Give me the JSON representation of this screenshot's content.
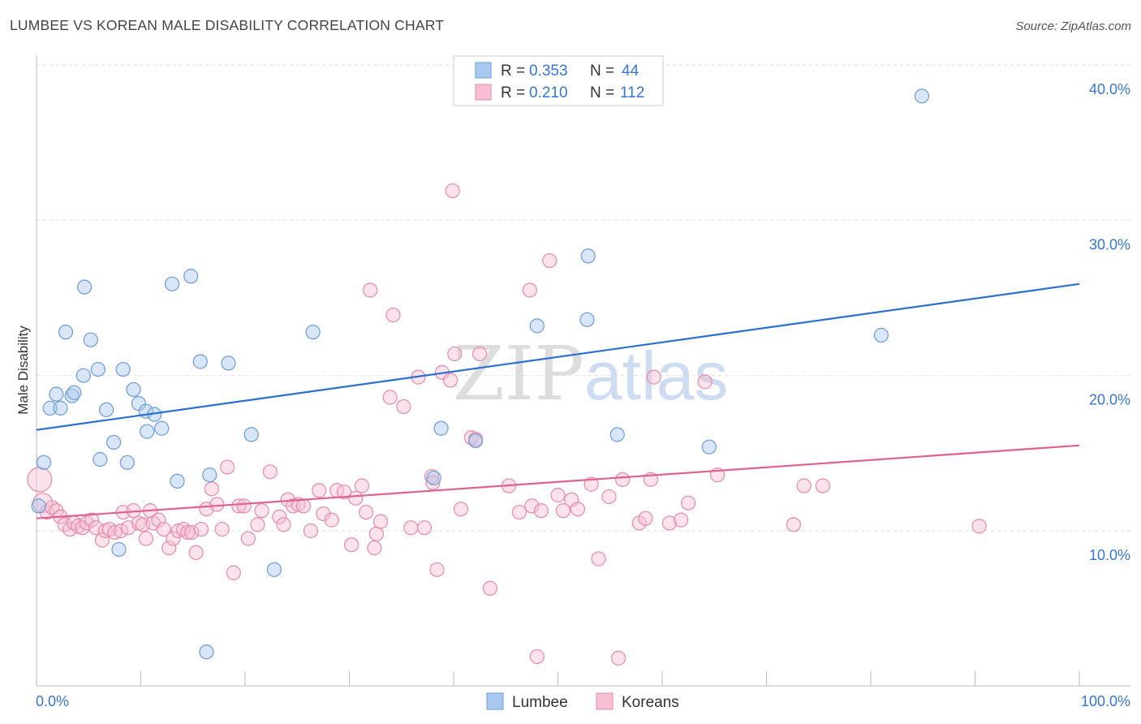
{
  "title": "LUMBEE VS KOREAN MALE DISABILITY CORRELATION CHART",
  "source": "Source: ZipAtlas.com",
  "watermark": {
    "part1": "ZIP",
    "part2": "atlas"
  },
  "chart_data": {
    "type": "scatter",
    "ylabel": "Male Disability",
    "xlabel": "",
    "xlim": [
      0,
      100
    ],
    "ylim": [
      0,
      40
    ],
    "x_tick_labels": [
      "0.0%",
      "100.0%"
    ],
    "y_ticks": [
      10,
      20,
      30,
      40
    ],
    "y_tick_labels": [
      "10.0%",
      "20.0%",
      "30.0%",
      "40.0%"
    ],
    "grid": true,
    "legend_position": "top-center",
    "stats": [
      {
        "r_label": "R =",
        "r_value": "0.353",
        "n_label": "N =",
        "n_value": "44"
      },
      {
        "r_label": "R =",
        "r_value": "0.210",
        "n_label": "N =",
        "n_value": "112"
      }
    ],
    "series": [
      {
        "name": "Lumbee",
        "color": "#a9c8ee",
        "stroke": "#6a9bd8",
        "line_color": "#2b6fd0",
        "trend": [
          [
            0,
            16.5
          ],
          [
            100,
            25.9
          ]
        ],
        "points": [
          [
            0.2,
            11.6
          ],
          [
            0.7,
            14.4
          ],
          [
            1.3,
            17.9
          ],
          [
            1.9,
            18.8
          ],
          [
            2.3,
            17.9
          ],
          [
            2.8,
            22.8
          ],
          [
            3.4,
            18.7
          ],
          [
            3.6,
            18.9
          ],
          [
            4.5,
            20.0
          ],
          [
            4.6,
            25.7
          ],
          [
            5.2,
            22.3
          ],
          [
            5.9,
            20.4
          ],
          [
            6.1,
            14.6
          ],
          [
            6.7,
            17.8
          ],
          [
            7.4,
            15.7
          ],
          [
            7.9,
            8.8
          ],
          [
            8.3,
            20.4
          ],
          [
            8.7,
            14.4
          ],
          [
            9.3,
            19.1
          ],
          [
            9.8,
            18.2
          ],
          [
            10.5,
            17.7
          ],
          [
            10.6,
            16.4
          ],
          [
            11.3,
            17.5
          ],
          [
            12.0,
            16.6
          ],
          [
            13.0,
            25.9
          ],
          [
            13.5,
            13.2
          ],
          [
            14.8,
            26.4
          ],
          [
            15.7,
            20.9
          ],
          [
            16.3,
            2.2
          ],
          [
            16.6,
            13.6
          ],
          [
            18.4,
            20.8
          ],
          [
            20.6,
            16.2
          ],
          [
            22.8,
            7.5
          ],
          [
            26.5,
            22.8
          ],
          [
            38.1,
            13.4
          ],
          [
            38.8,
            16.6
          ],
          [
            42.1,
            15.8
          ],
          [
            48.0,
            23.2
          ],
          [
            52.8,
            23.6
          ],
          [
            52.9,
            27.7
          ],
          [
            55.7,
            16.2
          ],
          [
            64.5,
            15.4
          ],
          [
            81.0,
            22.6
          ],
          [
            84.9,
            38.0
          ]
        ]
      },
      {
        "name": "Koreans",
        "color": "#f7bfd3",
        "stroke": "#e58aab",
        "line_color": "#e0608f",
        "trend": [
          [
            0,
            10.8
          ],
          [
            100,
            15.5
          ]
        ],
        "points": [
          [
            0.3,
            13.3
          ],
          [
            0.6,
            11.8
          ],
          [
            1.0,
            11.2
          ],
          [
            1.5,
            11.5
          ],
          [
            1.9,
            11.3
          ],
          [
            2.3,
            10.9
          ],
          [
            2.7,
            10.4
          ],
          [
            3.2,
            10.1
          ],
          [
            3.6,
            10.5
          ],
          [
            4.0,
            10.3
          ],
          [
            4.4,
            10.2
          ],
          [
            4.8,
            10.5
          ],
          [
            5.3,
            10.7
          ],
          [
            5.7,
            10.2
          ],
          [
            6.3,
            9.4
          ],
          [
            6.6,
            10.0
          ],
          [
            7.0,
            10.1
          ],
          [
            7.5,
            9.9
          ],
          [
            8.1,
            10.0
          ],
          [
            8.3,
            11.2
          ],
          [
            8.8,
            10.2
          ],
          [
            9.3,
            11.3
          ],
          [
            9.8,
            10.5
          ],
          [
            10.2,
            10.4
          ],
          [
            10.5,
            9.5
          ],
          [
            10.9,
            11.3
          ],
          [
            11.2,
            10.5
          ],
          [
            11.7,
            10.7
          ],
          [
            12.2,
            10.1
          ],
          [
            12.7,
            8.9
          ],
          [
            13.1,
            9.5
          ],
          [
            13.6,
            10.0
          ],
          [
            14.1,
            10.1
          ],
          [
            14.5,
            9.9
          ],
          [
            14.9,
            9.9
          ],
          [
            15.3,
            8.6
          ],
          [
            15.8,
            10.1
          ],
          [
            16.3,
            11.4
          ],
          [
            16.8,
            12.7
          ],
          [
            17.3,
            11.7
          ],
          [
            17.8,
            10.1
          ],
          [
            18.3,
            14.1
          ],
          [
            18.9,
            7.3
          ],
          [
            19.4,
            11.6
          ],
          [
            19.9,
            11.6
          ],
          [
            20.3,
            9.5
          ],
          [
            21.2,
            10.4
          ],
          [
            21.6,
            11.3
          ],
          [
            22.4,
            13.8
          ],
          [
            23.3,
            10.9
          ],
          [
            23.7,
            10.4
          ],
          [
            24.1,
            12.0
          ],
          [
            24.6,
            11.6
          ],
          [
            25.1,
            11.7
          ],
          [
            25.6,
            11.6
          ],
          [
            26.3,
            10.0
          ],
          [
            27.1,
            12.6
          ],
          [
            27.5,
            11.1
          ],
          [
            28.3,
            10.7
          ],
          [
            28.8,
            12.6
          ],
          [
            29.5,
            12.5
          ],
          [
            30.2,
            9.1
          ],
          [
            30.6,
            12.1
          ],
          [
            31.2,
            12.9
          ],
          [
            31.6,
            11.2
          ],
          [
            32.0,
            25.5
          ],
          [
            32.4,
            8.9
          ],
          [
            32.6,
            9.8
          ],
          [
            33.0,
            10.6
          ],
          [
            33.9,
            18.6
          ],
          [
            34.2,
            23.9
          ],
          [
            35.2,
            18.0
          ],
          [
            35.9,
            10.2
          ],
          [
            36.6,
            19.9
          ],
          [
            37.2,
            10.2
          ],
          [
            37.9,
            13.5
          ],
          [
            38.0,
            13.1
          ],
          [
            38.4,
            7.5
          ],
          [
            38.9,
            20.2
          ],
          [
            39.7,
            19.7
          ],
          [
            39.9,
            31.9
          ],
          [
            40.1,
            21.4
          ],
          [
            40.7,
            11.4
          ],
          [
            41.7,
            16.0
          ],
          [
            42.1,
            15.9
          ],
          [
            42.5,
            21.4
          ],
          [
            43.5,
            6.3
          ],
          [
            45.3,
            12.9
          ],
          [
            46.3,
            11.2
          ],
          [
            47.3,
            25.5
          ],
          [
            47.5,
            11.6
          ],
          [
            48.0,
            1.9
          ],
          [
            48.4,
            11.3
          ],
          [
            49.2,
            27.4
          ],
          [
            50.0,
            12.3
          ],
          [
            50.5,
            11.3
          ],
          [
            51.3,
            12.0
          ],
          [
            51.9,
            11.4
          ],
          [
            53.2,
            13.0
          ],
          [
            53.9,
            8.2
          ],
          [
            54.9,
            12.2
          ],
          [
            55.8,
            1.8
          ],
          [
            56.2,
            13.3
          ],
          [
            57.8,
            10.5
          ],
          [
            58.4,
            10.8
          ],
          [
            58.9,
            13.3
          ],
          [
            59.2,
            19.9
          ],
          [
            60.7,
            10.5
          ],
          [
            61.8,
            10.7
          ],
          [
            62.5,
            11.8
          ],
          [
            64.1,
            19.6
          ],
          [
            65.3,
            13.6
          ],
          [
            72.6,
            10.4
          ],
          [
            73.6,
            12.9
          ],
          [
            75.4,
            12.9
          ],
          [
            90.4,
            10.3
          ]
        ]
      }
    ]
  }
}
